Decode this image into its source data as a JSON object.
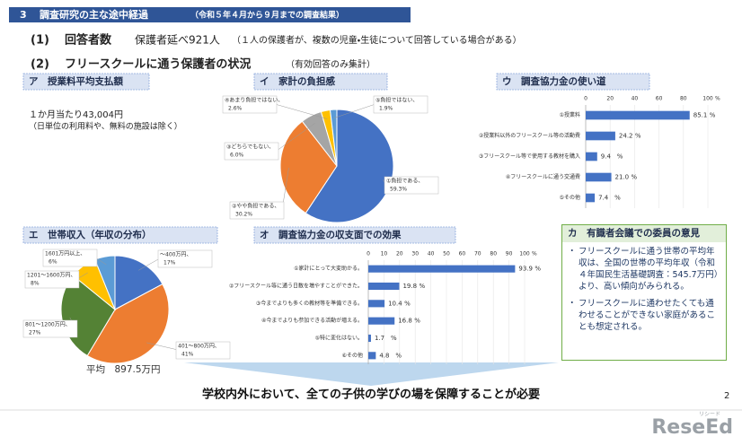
{
  "header": {
    "number": "3",
    "title": "調査研究の主な途中経過",
    "note": "（令和５年４月から９月までの調査結果）"
  },
  "respondents": {
    "label": "(1)",
    "title": "回答者数",
    "value": "保護者延べ921人",
    "note": "（１人の保護者が、複数の児童・生徒について回答している場合がある）"
  },
  "status": {
    "label": "(2)",
    "title": "フリースクールに通う保護者の状況",
    "note": "（有効回答のみ集計）"
  },
  "tuition": {
    "title": "ア　授業料平均支払額",
    "text": "１か月当たり43,004円",
    "note": "（日単位の利用料や、無料の施設は除く）"
  },
  "chart_data": [
    {
      "type": "pie",
      "title": "イ　家計の負担感",
      "categories": [
        "①負担である、",
        "②やや負担である、",
        "③どちらでもない、",
        "④あまり負担ではない、",
        "⑤負担ではない、"
      ],
      "values": [
        59.3,
        30.2,
        6.0,
        2.6,
        1.9
      ],
      "value_labels": [
        "59.3%",
        "30.2%",
        "6.0%",
        "2.6%",
        "1.9%"
      ],
      "colors": [
        "#4472c4",
        "#ed7d31",
        "#a5a5a5",
        "#ffc000",
        "#5b9bd5"
      ]
    },
    {
      "type": "bar",
      "horizontal": true,
      "title": "ウ　調査協力金の使い道",
      "categories": [
        "①授業料",
        "②授業料以外のフリースクール等の活動費",
        "③フリースクール等で使用する教材を購入",
        "④フリースクールに通う交通費",
        "⑤その他"
      ],
      "values": [
        85.1,
        24.2,
        9.4,
        21.0,
        7.4
      ],
      "value_labels": [
        "85.1",
        "24.2",
        "9.4",
        "21.0",
        "7.4"
      ],
      "unit": "%",
      "color": "#4472c4",
      "xlim": [
        0,
        100
      ],
      "xticks": [
        0,
        20,
        40,
        60,
        80,
        100
      ],
      "grid": true
    },
    {
      "type": "pie",
      "title": "エ　世帯収入（年収の分布）",
      "categories": [
        "～400万円、",
        "401～800万円、",
        "801～1200万円、",
        "1201～1600万円、",
        "1601万円以上、"
      ],
      "values": [
        17,
        41,
        27,
        8,
        6
      ],
      "value_labels": [
        "17%",
        "41%",
        "27%",
        "8%",
        "6%"
      ],
      "colors": [
        "#4472c4",
        "#ed7d31",
        "#548235",
        "#ffc000",
        "#5b9bd5"
      ],
      "annotation": "平均　897.5万円"
    },
    {
      "type": "bar",
      "horizontal": true,
      "title": "オ　調査協力金の収支面での効果",
      "categories": [
        "①家計にとって大変助かる。",
        "②フリースクール等に通う日数を増やすことができた。",
        "③今までよりも多くの教材等を準備できる。",
        "④今までよりも参加できる活動が増える。",
        "⑤特に変化はない。",
        "⑥その他"
      ],
      "values": [
        93.9,
        19.8,
        10.4,
        16.8,
        1.7,
        4.8
      ],
      "unit": "%",
      "color": "#4472c4",
      "xlim": [
        0,
        100
      ],
      "xticks": [
        0,
        10,
        20,
        30,
        40,
        50,
        60,
        70,
        80,
        90,
        100
      ],
      "grid": true
    }
  ],
  "opinion": {
    "title": "カ　有識者会議での委員の意見",
    "bullets": [
      "フリースクールに通う世帯の平均年収は、全国の世帯の平均年収（令和４年国民生活基礎調査：545.7万円）より、高い傾向がみられる。",
      "フリースクールに通わせたくても通わせることができない家庭があることも想定される。"
    ]
  },
  "conclusion": "学校内外において、全ての子供の学びの場を保障することが必要",
  "page": "2",
  "logo": "ReseEd",
  "logo_sub": "リシード"
}
